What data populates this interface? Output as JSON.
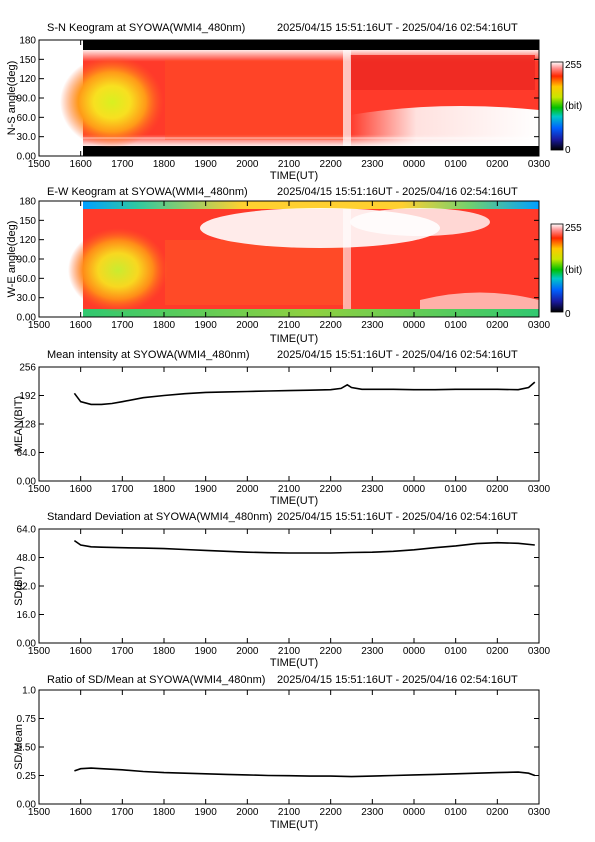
{
  "time_range": "2025/04/15 15:51:16UT - 2025/04/16 02:54:16UT",
  "x_ticks": [
    "1500",
    "1600",
    "1700",
    "1800",
    "1900",
    "2000",
    "2100",
    "2200",
    "2300",
    "0000",
    "0100",
    "0200",
    "0300"
  ],
  "x_label": "TIME(UT)",
  "chart_data": [
    {
      "type": "heatmap",
      "title": "S-N Keogram at SYOWA(WMI4_480nm)",
      "ylabel": "N-S angle(deg)",
      "xlabel": "TIME(UT)",
      "yticks": [
        "0.00",
        "30.0",
        "60.0",
        "90.0",
        "120",
        "150",
        "180"
      ],
      "ylim": [
        0,
        180
      ],
      "colorbar": {
        "min": "0",
        "max": "255",
        "unit": "(bit)"
      },
      "data_start": "1551",
      "data_end": "0254"
    },
    {
      "type": "heatmap",
      "title": "E-W Keogram at SYOWA(WMI4_480nm)",
      "ylabel": "W-E angle(deg)",
      "xlabel": "TIME(UT)",
      "yticks": [
        "0.00",
        "30.0",
        "60.0",
        "90.0",
        "120",
        "150",
        "180"
      ],
      "ylim": [
        0,
        180
      ],
      "colorbar": {
        "min": "0",
        "max": "255",
        "unit": "(bit)"
      },
      "data_start": "1551",
      "data_end": "0254"
    },
    {
      "type": "line",
      "title": "Mean intensity at SYOWA(WMI4_480nm)",
      "ylabel": "MEAN(BIT)",
      "xlabel": "TIME(UT)",
      "yticks": [
        "0.00",
        "64.0",
        "128",
        "192",
        "256"
      ],
      "ylim": [
        0,
        256
      ],
      "x": [
        15.85,
        16.0,
        16.25,
        16.5,
        16.75,
        17.0,
        17.5,
        18.0,
        18.5,
        19.0,
        19.5,
        20.0,
        20.5,
        21.0,
        21.5,
        22.0,
        22.25,
        22.4,
        22.5,
        22.75,
        23.0,
        23.5,
        24.0,
        24.5,
        25.0,
        25.5,
        26.0,
        26.5,
        26.75,
        26.9
      ],
      "values": [
        197,
        178,
        172,
        172,
        174,
        178,
        187,
        192,
        196,
        199,
        200,
        201,
        202,
        203,
        204,
        205,
        208,
        216,
        210,
        206,
        206,
        206,
        205,
        205,
        206,
        206,
        206,
        205,
        210,
        222
      ]
    },
    {
      "type": "line",
      "title": "Standard Deviation at SYOWA(WMI4_480nm)",
      "ylabel": "SD(BIT)",
      "xlabel": "TIME(UT)",
      "yticks": [
        "0.00",
        "16.0",
        "32.0",
        "48.0",
        "64.0"
      ],
      "ylim": [
        0,
        64
      ],
      "x": [
        15.85,
        16.0,
        16.25,
        16.5,
        17.0,
        17.5,
        18.0,
        18.5,
        19.0,
        19.5,
        20.0,
        20.5,
        21.0,
        21.5,
        22.0,
        22.5,
        23.0,
        23.5,
        24.0,
        24.5,
        25.0,
        25.5,
        26.0,
        26.5,
        26.9
      ],
      "values": [
        57.5,
        55.0,
        54.0,
        53.8,
        53.5,
        53.3,
        53.0,
        52.5,
        52.0,
        51.5,
        51.0,
        50.7,
        50.5,
        50.5,
        50.5,
        50.8,
        51.0,
        51.5,
        52.3,
        53.5,
        54.5,
        55.8,
        56.3,
        56.0,
        55.0
      ]
    },
    {
      "type": "line",
      "title": "Ratio of SD/Mean at SYOWA(WMI4_480nm)",
      "ylabel": "SD/Mean",
      "xlabel": "TIME(UT)",
      "yticks": [
        "0.00",
        "0.25",
        "0.50",
        "0.75",
        "1.0"
      ],
      "ylim": [
        0,
        1.0
      ],
      "x": [
        15.85,
        16.0,
        16.25,
        16.5,
        17.0,
        17.5,
        18.0,
        18.5,
        19.0,
        19.5,
        20.0,
        20.5,
        21.0,
        21.5,
        22.0,
        22.5,
        23.0,
        23.5,
        24.0,
        24.5,
        25.0,
        25.5,
        26.0,
        26.5,
        26.75,
        26.9
      ],
      "values": [
        0.29,
        0.31,
        0.315,
        0.31,
        0.3,
        0.285,
        0.275,
        0.27,
        0.265,
        0.26,
        0.255,
        0.25,
        0.248,
        0.245,
        0.245,
        0.24,
        0.245,
        0.25,
        0.255,
        0.26,
        0.265,
        0.27,
        0.275,
        0.28,
        0.27,
        0.25
      ]
    }
  ]
}
